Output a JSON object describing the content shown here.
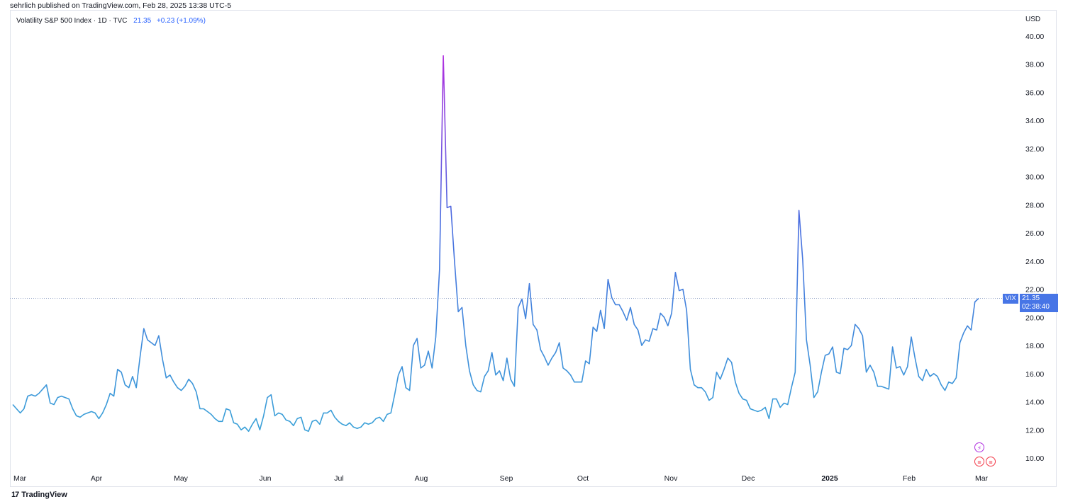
{
  "header": {
    "published": "sehrlich published on TradingView.com, Feb 28, 2025 13:38 UTC-5",
    "symbol_title": "Volatility S&P 500 Index · 1D · TVC",
    "last_value": "21.35",
    "change": "+0.23 (+1.09%)",
    "currency": "USD"
  },
  "badge": {
    "name": "VIX",
    "price": "21.35",
    "countdown": "02:38:40"
  },
  "footer": {
    "brand": "TradingView",
    "logo_glyph": "17"
  },
  "icons": {
    "event_1": "lightning-icon",
    "event_2": "us-flag-icon",
    "event_3": "us-flag-icon"
  },
  "colors": {
    "line_low": "#3aa0d8",
    "line_mid": "#4a6ee0",
    "line_high": "#b030e0",
    "badge": "#4775e6"
  },
  "chart_data": {
    "type": "line",
    "title": "Volatility S&P 500 Index · 1D · TVC",
    "xlabel": "",
    "ylabel": "",
    "ylim": [
      9,
      41
    ],
    "y_ticks": [
      "10.00",
      "12.00",
      "14.00",
      "16.00",
      "18.00",
      "20.00",
      "22.00",
      "24.00",
      "26.00",
      "28.00",
      "30.00",
      "32.00",
      "34.00",
      "36.00",
      "38.00",
      "40.00"
    ],
    "x_ticks": [
      {
        "label": "Mar",
        "date": "2024-03-01"
      },
      {
        "label": "Apr",
        "date": "2024-04-01"
      },
      {
        "label": "May",
        "date": "2024-05-01"
      },
      {
        "label": "Jun",
        "date": "2024-06-01"
      },
      {
        "label": "Jul",
        "date": "2024-07-01"
      },
      {
        "label": "Aug",
        "date": "2024-08-01"
      },
      {
        "label": "Sep",
        "date": "2024-09-01"
      },
      {
        "label": "Oct",
        "date": "2024-10-01"
      },
      {
        "label": "Nov",
        "date": "2024-11-01"
      },
      {
        "label": "Dec",
        "date": "2024-12-01"
      },
      {
        "label": "2025",
        "date": "2025-01-01",
        "bold": true
      },
      {
        "label": "Feb",
        "date": "2025-02-01"
      },
      {
        "label": "Mar",
        "date": "2025-03-01"
      }
    ],
    "x_range": [
      "2024-03-01",
      "2025-03-04"
    ],
    "last_price_line": 21.35,
    "series": [
      {
        "values": [
          [
            "2024-03-01",
            13.8
          ],
          [
            "2024-03-04",
            13.5
          ],
          [
            "2024-03-05",
            13.2
          ],
          [
            "2024-03-06",
            13.5
          ],
          [
            "2024-03-07",
            14.4
          ],
          [
            "2024-03-08",
            14.5
          ],
          [
            "2024-03-11",
            14.4
          ],
          [
            "2024-03-12",
            14.6
          ],
          [
            "2024-03-13",
            14.9
          ],
          [
            "2024-03-14",
            15.2
          ],
          [
            "2024-03-15",
            13.9
          ],
          [
            "2024-03-18",
            13.8
          ],
          [
            "2024-03-19",
            14.3
          ],
          [
            "2024-03-20",
            14.4
          ],
          [
            "2024-03-21",
            14.3
          ],
          [
            "2024-03-22",
            14.2
          ],
          [
            "2024-03-25",
            13.5
          ],
          [
            "2024-03-26",
            13.0
          ],
          [
            "2024-03-27",
            12.9
          ],
          [
            "2024-03-28",
            13.1
          ],
          [
            "2024-04-01",
            13.2
          ],
          [
            "2024-04-02",
            13.3
          ],
          [
            "2024-04-03",
            13.2
          ],
          [
            "2024-04-04",
            12.8
          ],
          [
            "2024-04-05",
            13.2
          ],
          [
            "2024-04-08",
            13.8
          ],
          [
            "2024-04-09",
            14.6
          ],
          [
            "2024-04-10",
            14.4
          ],
          [
            "2024-04-11",
            16.3
          ],
          [
            "2024-04-12",
            16.1
          ],
          [
            "2024-04-15",
            15.2
          ],
          [
            "2024-04-16",
            15.0
          ],
          [
            "2024-04-17",
            15.8
          ],
          [
            "2024-04-18",
            15.0
          ],
          [
            "2024-04-19",
            17.2
          ],
          [
            "2024-04-22",
            19.2
          ],
          [
            "2024-04-23",
            18.4
          ],
          [
            "2024-04-24",
            18.2
          ],
          [
            "2024-04-25",
            18.0
          ],
          [
            "2024-04-26",
            18.7
          ],
          [
            "2024-04-29",
            17.0
          ],
          [
            "2024-04-30",
            15.7
          ],
          [
            "2024-05-01",
            15.9
          ],
          [
            "2024-05-02",
            15.4
          ],
          [
            "2024-05-03",
            15.0
          ],
          [
            "2024-05-06",
            14.8
          ],
          [
            "2024-05-07",
            15.1
          ],
          [
            "2024-05-08",
            15.6
          ],
          [
            "2024-05-09",
            15.3
          ],
          [
            "2024-05-10",
            14.7
          ],
          [
            "2024-05-13",
            13.5
          ],
          [
            "2024-05-14",
            13.5
          ],
          [
            "2024-05-15",
            13.3
          ],
          [
            "2024-05-16",
            13.1
          ],
          [
            "2024-05-17",
            12.8
          ],
          [
            "2024-05-20",
            12.6
          ],
          [
            "2024-05-21",
            12.6
          ],
          [
            "2024-05-22",
            13.5
          ],
          [
            "2024-05-23",
            13.4
          ],
          [
            "2024-05-24",
            12.5
          ],
          [
            "2024-05-28",
            12.4
          ],
          [
            "2024-05-29",
            12.0
          ],
          [
            "2024-05-30",
            12.2
          ],
          [
            "2024-05-31",
            11.9
          ],
          [
            "2024-06-03",
            12.4
          ],
          [
            "2024-06-04",
            12.8
          ],
          [
            "2024-06-05",
            12.0
          ],
          [
            "2024-06-06",
            13.0
          ],
          [
            "2024-06-07",
            14.3
          ],
          [
            "2024-06-10",
            14.5
          ],
          [
            "2024-06-11",
            13.0
          ],
          [
            "2024-06-12",
            13.2
          ],
          [
            "2024-06-13",
            13.1
          ],
          [
            "2024-06-14",
            12.7
          ],
          [
            "2024-06-17",
            12.6
          ],
          [
            "2024-06-18",
            12.3
          ],
          [
            "2024-06-20",
            12.8
          ],
          [
            "2024-06-21",
            12.9
          ],
          [
            "2024-06-24",
            12.0
          ],
          [
            "2024-06-25",
            11.9
          ],
          [
            "2024-06-26",
            12.6
          ],
          [
            "2024-06-27",
            12.7
          ],
          [
            "2024-06-28",
            12.4
          ],
          [
            "2024-07-01",
            13.2
          ],
          [
            "2024-07-02",
            13.2
          ],
          [
            "2024-07-03",
            13.4
          ],
          [
            "2024-07-05",
            12.9
          ],
          [
            "2024-07-08",
            12.6
          ],
          [
            "2024-07-09",
            12.4
          ],
          [
            "2024-07-10",
            12.3
          ],
          [
            "2024-07-11",
            12.5
          ],
          [
            "2024-07-12",
            12.2
          ],
          [
            "2024-07-15",
            12.1
          ],
          [
            "2024-07-16",
            12.2
          ],
          [
            "2024-07-17",
            12.5
          ],
          [
            "2024-07-18",
            12.4
          ],
          [
            "2024-07-19",
            12.5
          ],
          [
            "2024-07-22",
            12.8
          ],
          [
            "2024-07-23",
            12.9
          ],
          [
            "2024-07-24",
            12.6
          ],
          [
            "2024-07-25",
            13.1
          ],
          [
            "2024-07-26",
            13.2
          ],
          [
            "2024-07-29",
            14.5
          ],
          [
            "2024-07-30",
            15.9
          ],
          [
            "2024-07-31",
            16.5
          ],
          [
            "2024-08-01",
            15.0
          ],
          [
            "2024-08-02",
            14.8
          ],
          [
            "2024-08-05",
            18.0
          ],
          [
            "2024-08-06",
            18.5
          ],
          [
            "2024-08-07",
            16.4
          ],
          [
            "2024-08-08",
            16.6
          ],
          [
            "2024-08-09",
            17.6
          ],
          [
            "2024-08-12",
            16.4
          ],
          [
            "2024-08-13",
            18.6
          ],
          [
            "2024-08-14",
            23.4
          ],
          [
            "2024-08-15",
            38.6
          ],
          [
            "2024-08-16",
            27.8
          ],
          [
            "2024-08-19",
            27.9
          ],
          [
            "2024-08-20",
            24.0
          ],
          [
            "2024-08-21",
            20.4
          ],
          [
            "2024-08-22",
            20.7
          ],
          [
            "2024-08-23",
            18.0
          ],
          [
            "2024-08-26",
            16.2
          ],
          [
            "2024-08-27",
            15.2
          ],
          [
            "2024-08-28",
            14.8
          ],
          [
            "2024-08-29",
            14.7
          ],
          [
            "2024-08-30",
            15.8
          ],
          [
            "2024-09-03",
            16.2
          ],
          [
            "2024-09-04",
            17.5
          ],
          [
            "2024-09-05",
            15.9
          ],
          [
            "2024-09-06",
            16.2
          ],
          [
            "2024-09-09",
            15.5
          ],
          [
            "2024-09-10",
            17.1
          ],
          [
            "2024-09-11",
            15.6
          ],
          [
            "2024-09-12",
            15.1
          ],
          [
            "2024-09-13",
            20.7
          ],
          [
            "2024-09-16",
            21.3
          ],
          [
            "2024-09-17",
            19.9
          ],
          [
            "2024-09-18",
            22.4
          ],
          [
            "2024-09-19",
            19.5
          ],
          [
            "2024-09-20",
            19.1
          ],
          [
            "2024-09-23",
            17.7
          ],
          [
            "2024-09-24",
            17.2
          ],
          [
            "2024-09-25",
            16.6
          ],
          [
            "2024-09-26",
            17.1
          ],
          [
            "2024-09-27",
            17.5
          ],
          [
            "2024-09-30",
            18.2
          ],
          [
            "2024-10-01",
            16.4
          ],
          [
            "2024-10-02",
            16.2
          ],
          [
            "2024-10-03",
            15.9
          ],
          [
            "2024-10-04",
            15.4
          ],
          [
            "2024-10-07",
            15.4
          ],
          [
            "2024-10-08",
            15.4
          ],
          [
            "2024-10-09",
            16.9
          ],
          [
            "2024-10-10",
            16.7
          ],
          [
            "2024-10-11",
            19.3
          ],
          [
            "2024-10-14",
            19.0
          ],
          [
            "2024-10-15",
            20.5
          ],
          [
            "2024-10-16",
            19.2
          ],
          [
            "2024-10-17",
            22.7
          ],
          [
            "2024-10-18",
            21.4
          ],
          [
            "2024-10-21",
            20.9
          ],
          [
            "2024-10-22",
            20.9
          ],
          [
            "2024-10-23",
            20.4
          ],
          [
            "2024-10-24",
            19.8
          ],
          [
            "2024-10-25",
            20.7
          ],
          [
            "2024-10-28",
            19.5
          ],
          [
            "2024-10-29",
            19.1
          ],
          [
            "2024-10-30",
            18.0
          ],
          [
            "2024-10-31",
            18.4
          ],
          [
            "2024-11-01",
            18.3
          ],
          [
            "2024-11-04",
            19.2
          ],
          [
            "2024-11-05",
            19.1
          ],
          [
            "2024-11-06",
            20.3
          ],
          [
            "2024-11-07",
            20.0
          ],
          [
            "2024-11-08",
            19.4
          ],
          [
            "2024-11-11",
            20.3
          ],
          [
            "2024-11-12",
            23.2
          ],
          [
            "2024-11-13",
            21.9
          ],
          [
            "2024-11-14",
            22.0
          ],
          [
            "2024-11-15",
            20.5
          ],
          [
            "2024-11-18",
            16.3
          ],
          [
            "2024-11-19",
            15.2
          ],
          [
            "2024-11-20",
            15.0
          ],
          [
            "2024-11-21",
            15.0
          ],
          [
            "2024-11-22",
            14.7
          ],
          [
            "2024-11-25",
            14.1
          ],
          [
            "2024-11-26",
            14.3
          ],
          [
            "2024-11-27",
            16.1
          ],
          [
            "2024-11-29",
            15.6
          ],
          [
            "2024-12-02",
            16.3
          ],
          [
            "2024-12-03",
            17.1
          ],
          [
            "2024-12-04",
            16.8
          ],
          [
            "2024-12-05",
            15.4
          ],
          [
            "2024-12-06",
            14.6
          ],
          [
            "2024-12-09",
            14.2
          ],
          [
            "2024-12-10",
            14.1
          ],
          [
            "2024-12-11",
            13.5
          ],
          [
            "2024-12-12",
            13.4
          ],
          [
            "2024-12-13",
            13.3
          ],
          [
            "2024-12-16",
            13.4
          ],
          [
            "2024-12-17",
            13.6
          ],
          [
            "2024-12-18",
            12.8
          ],
          [
            "2024-12-19",
            14.2
          ],
          [
            "2024-12-20",
            14.2
          ],
          [
            "2024-12-23",
            13.6
          ],
          [
            "2024-12-24",
            13.9
          ],
          [
            "2024-12-26",
            13.8
          ],
          [
            "2024-12-27",
            15.0
          ],
          [
            "2024-12-30",
            16.1
          ],
          [
            "2024-12-31",
            27.6
          ],
          [
            "2025-01-02",
            24.1
          ],
          [
            "2025-01-03",
            18.4
          ],
          [
            "2025-01-06",
            16.6
          ],
          [
            "2025-01-07",
            14.3
          ],
          [
            "2025-01-08",
            14.7
          ],
          [
            "2025-01-10",
            16.1
          ],
          [
            "2025-01-13",
            17.3
          ],
          [
            "2025-01-14",
            17.4
          ],
          [
            "2025-01-15",
            17.9
          ],
          [
            "2025-01-16",
            16.1
          ],
          [
            "2025-01-17",
            16.0
          ],
          [
            "2025-01-21",
            17.8
          ],
          [
            "2025-01-22",
            17.7
          ],
          [
            "2025-01-23",
            18.0
          ],
          [
            "2025-01-24",
            19.5
          ],
          [
            "2025-01-27",
            19.2
          ],
          [
            "2025-01-28",
            18.7
          ],
          [
            "2025-01-29",
            16.1
          ],
          [
            "2025-01-30",
            16.6
          ],
          [
            "2025-01-31",
            16.1
          ],
          [
            "2025-02-03",
            15.1
          ],
          [
            "2025-02-04",
            15.1
          ],
          [
            "2025-02-05",
            15.0
          ],
          [
            "2025-02-06",
            14.9
          ],
          [
            "2025-02-07",
            17.9
          ],
          [
            "2025-02-10",
            16.4
          ],
          [
            "2025-02-11",
            16.5
          ],
          [
            "2025-02-12",
            15.9
          ],
          [
            "2025-02-13",
            16.5
          ],
          [
            "2025-02-14",
            18.6
          ],
          [
            "2025-02-17",
            17.1
          ],
          [
            "2025-02-18",
            15.8
          ],
          [
            "2025-02-19",
            15.5
          ],
          [
            "2025-02-20",
            16.3
          ],
          [
            "2025-02-21",
            15.8
          ],
          [
            "2025-02-24",
            16.0
          ],
          [
            "2025-02-25",
            15.8
          ],
          [
            "2025-02-26",
            15.2
          ],
          [
            "2025-02-27",
            14.8
          ],
          [
            "2025-02-28",
            15.4
          ],
          [
            "2025-03-03",
            15.3
          ],
          [
            "2025-03-04",
            15.7
          ],
          [
            "2025-03-05",
            18.2
          ],
          [
            "2025-03-06",
            18.9
          ],
          [
            "2025-03-07",
            19.4
          ],
          [
            "2025-03-10",
            19.1
          ],
          [
            "2025-03-11",
            21.1
          ],
          [
            "2025-03-12",
            21.35
          ]
        ]
      }
    ]
  }
}
